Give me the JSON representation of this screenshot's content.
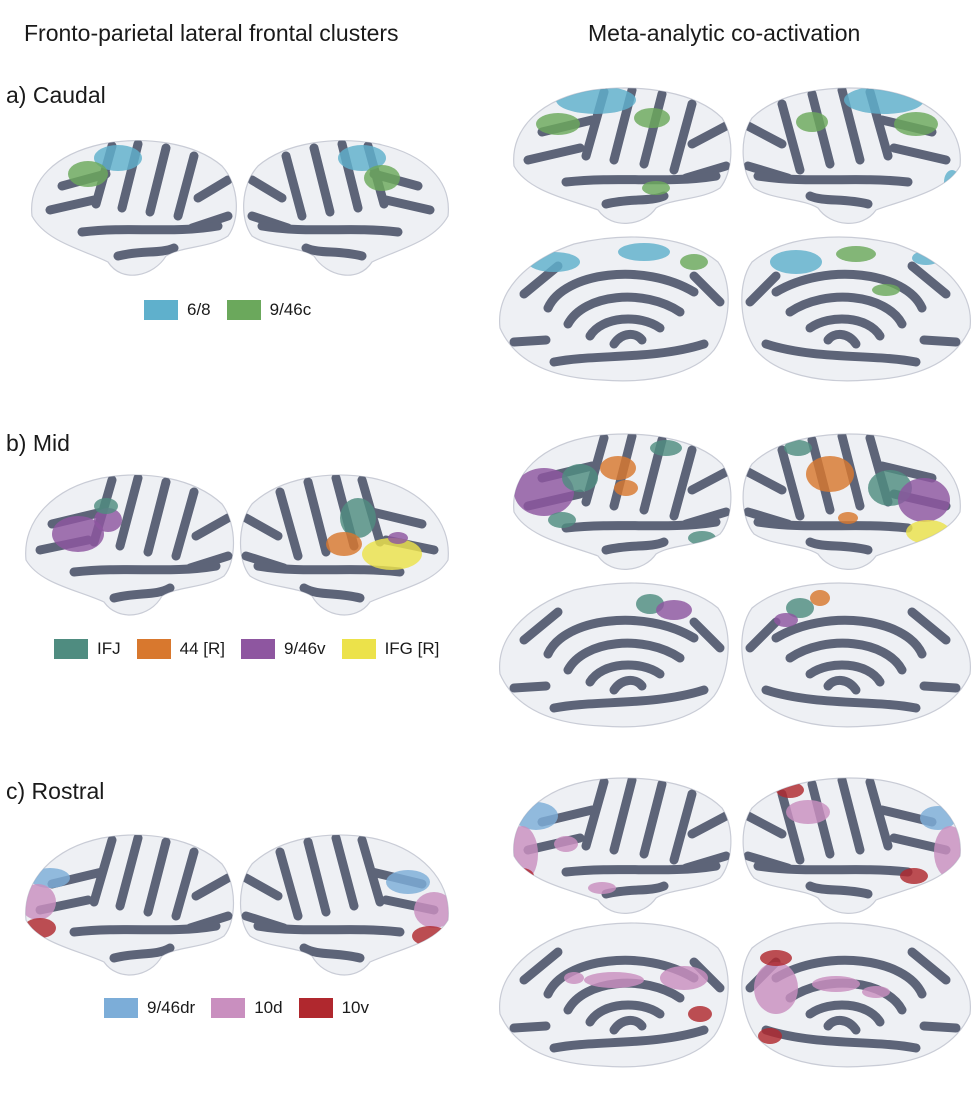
{
  "headers": {
    "left": "Fronto-parietal lateral frontal clusters",
    "right": "Meta-analytic co-activation"
  },
  "colors": {
    "cortex_light": "#eef0f4",
    "cortex_dark": "#5d6478"
  },
  "panels": [
    {
      "label": "a) Caudal",
      "legend": [
        {
          "label": "6/8",
          "color": "#5fb0cc"
        },
        {
          "label": "9/46c",
          "color": "#6ba85c"
        }
      ]
    },
    {
      "label": "b) Mid",
      "legend": [
        {
          "label": "IFJ",
          "color": "#4f8c80"
        },
        {
          "label": "44 [R]",
          "color": "#d8782e"
        },
        {
          "label": "9/46v",
          "color": "#8e56a0"
        },
        {
          "label": "IFG [R]",
          "color": "#ece24a"
        }
      ]
    },
    {
      "label": "c) Rostral",
      "legend": [
        {
          "label": "9/46dr",
          "color": "#7cadd8"
        },
        {
          "label": "10d",
          "color": "#c98fbf"
        },
        {
          "label": "10v",
          "color": "#b0282e"
        }
      ]
    }
  ]
}
